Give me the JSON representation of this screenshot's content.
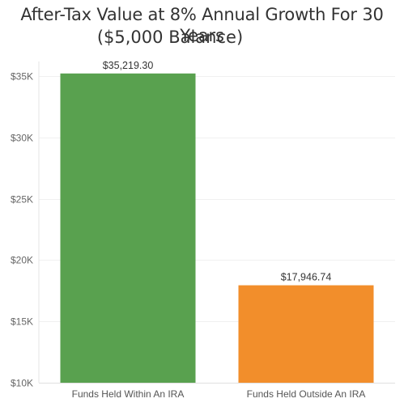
{
  "chart_data": {
    "type": "bar",
    "title_line1": "After-Tax Value at 8% Annual Growth For 30 Years",
    "title_line2": "($5,000 Balance)",
    "xlabel": "",
    "ylabel": "",
    "categories": [
      "Funds Held Within An IRA",
      "Funds Held Outside An IRA"
    ],
    "values": [
      35219.3,
      17946.74
    ],
    "data_labels": [
      "$35,219.30",
      "$17,946.74"
    ],
    "bar_colors": [
      "#59a14f",
      "#f28e2b"
    ],
    "ylim": [
      10000,
      35800
    ],
    "yticks": [
      10000,
      15000,
      20000,
      25000,
      30000,
      35000
    ],
    "ytick_labels": [
      "$10K",
      "$15K",
      "$20K",
      "$25K",
      "$30K",
      "$35K"
    ],
    "grid": true,
    "legend": "none"
  }
}
